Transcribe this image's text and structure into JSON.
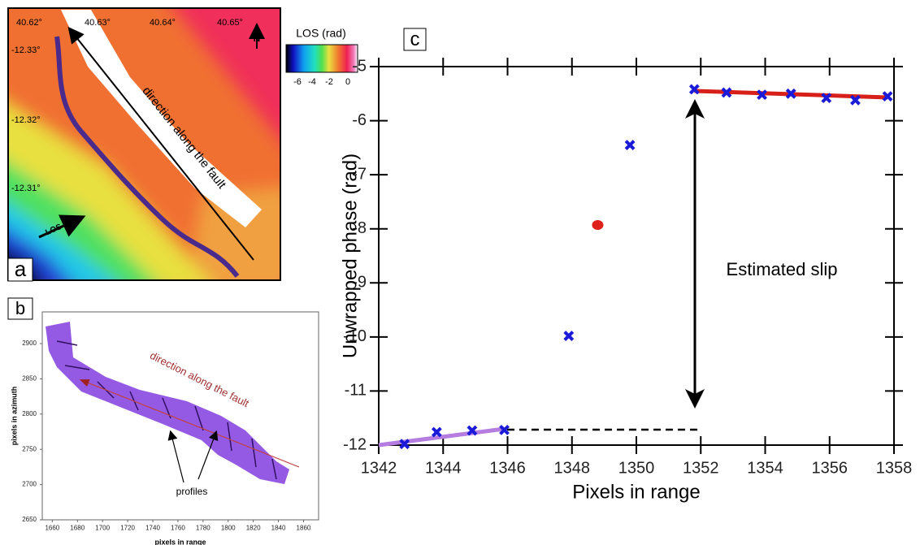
{
  "panel_a": {
    "label": "a",
    "lon_labels": [
      "40.62°",
      "40.63°",
      "40.64°",
      "40.65°"
    ],
    "lat_labels": [
      "-12.33°",
      "-12.32°",
      "-12.31°"
    ],
    "north": "N",
    "colorbar_title": "LOS (rad)",
    "colorbar_labels": [
      "-6",
      "-4",
      "-2",
      "0"
    ],
    "fault_text": "direction along the fault",
    "los_text": "LOS"
  },
  "chart_data": [
    {
      "type": "profile-map",
      "label": "b",
      "xlabel": "pixels in range",
      "ylabel": "pixels in azimuth",
      "xlim": [
        1652,
        1872
      ],
      "xticks": [
        1660,
        1680,
        1700,
        1720,
        1740,
        1760,
        1780,
        1800,
        1820,
        1840,
        1860
      ],
      "ylim": [
        2650,
        2945
      ],
      "yticks": [
        2650,
        2700,
        2750,
        2800,
        2850,
        2900
      ],
      "annotations": [
        "direction along the fault",
        "profiles"
      ]
    },
    {
      "type": "scatter",
      "label": "c",
      "xlabel": "Pixels in range",
      "ylabel": "Unwrapped phase (rad)",
      "xlim": [
        1342,
        1358
      ],
      "xticks": [
        1342,
        1344,
        1346,
        1348,
        1350,
        1352,
        1354,
        1356,
        1358
      ],
      "ylim": [
        -12,
        -5
      ],
      "yticks": [
        -12,
        -11,
        -10,
        -9,
        -8,
        -7,
        -6,
        -5
      ],
      "annotation": "Estimated slip",
      "series": [
        {
          "marker": "x",
          "color": "#1a1ad8",
          "x": [
            1342.8,
            1343.8,
            1344.9,
            1345.9,
            1347.9,
            1349.8,
            1351.8,
            1352.8,
            1353.9,
            1354.8,
            1355.9,
            1356.8,
            1357.8
          ],
          "values": [
            -11.98,
            -11.76,
            -11.73,
            -11.72,
            -9.98,
            -6.45,
            -5.42,
            -5.48,
            -5.52,
            -5.5,
            -5.58,
            -5.62,
            -5.55
          ]
        },
        {
          "marker": "circle",
          "color": "#e0201a",
          "x": [
            1348.8
          ],
          "values": [
            -7.93
          ]
        },
        {
          "marker": "line",
          "color": "#b57de0",
          "x": [
            1342,
            1345.9
          ],
          "values": [
            -12,
            -11.7
          ]
        },
        {
          "marker": "line",
          "color": "#d8201a",
          "x": [
            1351.8,
            1357.8
          ],
          "values": [
            -5.45,
            -5.57
          ]
        }
      ]
    }
  ]
}
